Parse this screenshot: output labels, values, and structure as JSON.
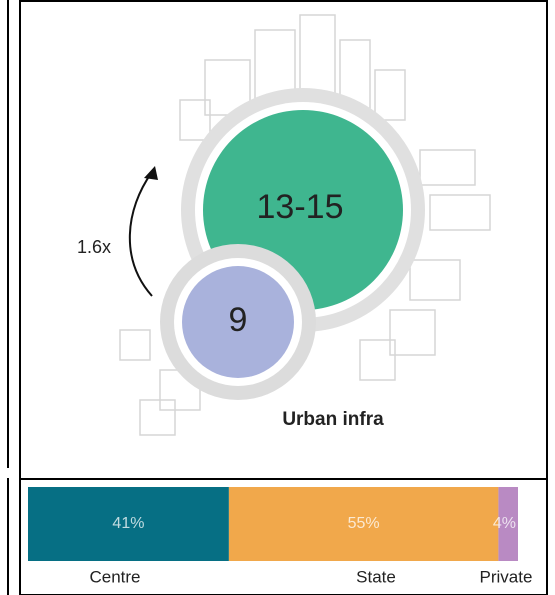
{
  "infographic": {
    "multiplier": "1.6x",
    "large_label": "13-15",
    "small_label": "9",
    "caption": "Urban infra"
  },
  "chart_data": {
    "type": "stacked-bar",
    "series": [
      {
        "name": "Centre",
        "color": "#066f84",
        "values": [
          41
        ],
        "value_labels": [
          "41%"
        ]
      },
      {
        "name": "State",
        "color": "#f1a84b",
        "values": [
          55
        ],
        "value_labels": [
          "55%"
        ]
      },
      {
        "name": "Private",
        "color": "#b98ac3",
        "values": [
          4
        ],
        "value_labels": [
          "4%"
        ]
      }
    ]
  }
}
